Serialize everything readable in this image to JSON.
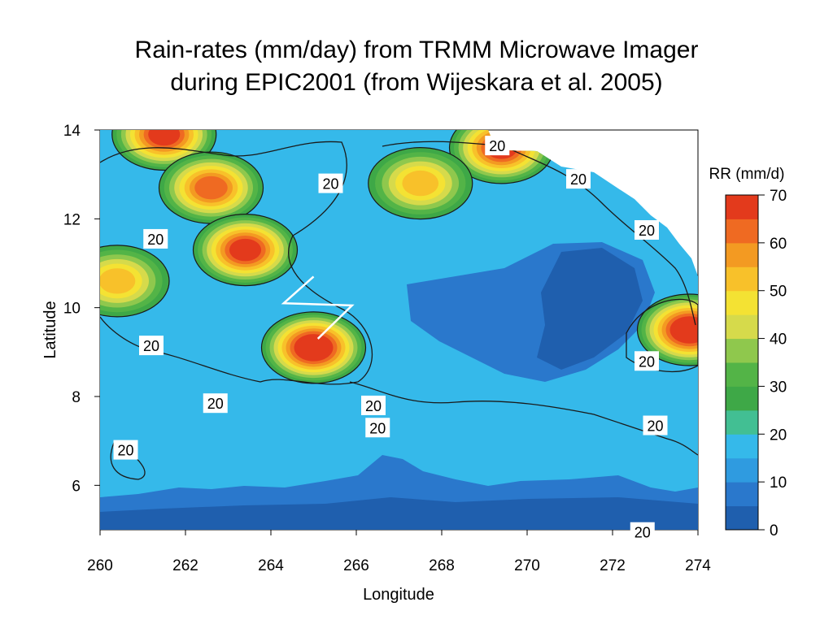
{
  "title_lines": [
    "Rain-rates (mm/day) from TRMM Microwave Imager",
    "during EPIC2001 (from Wijeskara et al. 2005)"
  ],
  "chart_data": {
    "type": "heatmap",
    "xlabel": "Longitude",
    "ylabel": "Latitude",
    "xlim": [
      260,
      274
    ],
    "ylim": [
      5,
      14
    ],
    "x_ticks": [
      "260",
      "262",
      "264",
      "266",
      "268",
      "270",
      "272",
      "274"
    ],
    "y_ticks": [
      "6",
      "8",
      "10",
      "12",
      "14"
    ],
    "colorbar": {
      "label": "RR (mm/d)",
      "ticks": [
        "0",
        "10",
        "20",
        "30",
        "40",
        "50",
        "60",
        "70"
      ],
      "range": [
        0,
        70
      ],
      "colors": [
        "#1f5fae",
        "#2a78cc",
        "#2f9be0",
        "#35b9ea",
        "#42bf93",
        "#3ea847",
        "#53b447",
        "#8fc84d",
        "#d6da4b",
        "#f4e233",
        "#f8c12a",
        "#f39a22",
        "#ef6a22",
        "#e33a1c"
      ]
    },
    "contour_level": 20,
    "contour_labels": [
      {
        "text": "20",
        "lon": 269.3,
        "lat": 13.65
      },
      {
        "text": "20",
        "lon": 265.4,
        "lat": 12.8
      },
      {
        "text": "20",
        "lon": 271.2,
        "lat": 12.9
      },
      {
        "text": "20",
        "lon": 261.3,
        "lat": 11.55
      },
      {
        "text": "20",
        "lon": 272.8,
        "lat": 11.75
      },
      {
        "text": "20",
        "lon": 261.2,
        "lat": 9.15
      },
      {
        "text": "20",
        "lon": 272.8,
        "lat": 8.8
      },
      {
        "text": "20",
        "lon": 262.7,
        "lat": 7.85
      },
      {
        "text": "20",
        "lon": 266.4,
        "lat": 7.8
      },
      {
        "text": "20",
        "lon": 266.5,
        "lat": 7.3
      },
      {
        "text": "20",
        "lon": 273.0,
        "lat": 7.35
      },
      {
        "text": "20",
        "lon": 260.6,
        "lat": 6.8
      },
      {
        "text": "20",
        "lon": 272.7,
        "lat": 4.95
      }
    ],
    "features": [
      {
        "name": "rain-maximum-near-261.5E-13.9N",
        "lon": 261.5,
        "lat": 13.9,
        "peak_mm_per_day": 65
      },
      {
        "name": "rain-maximum-near-262.5E-12.7N",
        "lon": 262.6,
        "lat": 12.7,
        "peak_mm_per_day": 62
      },
      {
        "name": "rain-maximum-near-263.4E-11.3N",
        "lon": 263.4,
        "lat": 11.3,
        "peak_mm_per_day": 68
      },
      {
        "name": "rain-maximum-near-260.4E-10.6N",
        "lon": 260.4,
        "lat": 10.6,
        "peak_mm_per_day": 50
      },
      {
        "name": "rain-maximum-near-265.0E-9.1N",
        "lon": 265.0,
        "lat": 9.1,
        "peak_mm_per_day": 70
      },
      {
        "name": "rain-maximum-near-269.4E-13.6N",
        "lon": 269.4,
        "lat": 13.6,
        "peak_mm_per_day": 68
      },
      {
        "name": "rain-maximum-near-267.5E-12.8N",
        "lon": 267.5,
        "lat": 12.8,
        "peak_mm_per_day": 52
      },
      {
        "name": "rain-maximum-near-273.8E-9.5N",
        "lon": 273.8,
        "lat": 9.5,
        "peak_mm_per_day": 70
      },
      {
        "name": "dry-region-near-271.5E-10N",
        "lon": 271.5,
        "lat": 10.0,
        "peak_mm_per_day": 3
      }
    ],
    "ship_track_marker": [
      {
        "lon": 265.0,
        "lat": 10.7
      },
      {
        "lon": 264.3,
        "lat": 10.1
      },
      {
        "lon": 265.9,
        "lat": 10.05
      },
      {
        "lon": 265.1,
        "lat": 9.3
      }
    ]
  }
}
